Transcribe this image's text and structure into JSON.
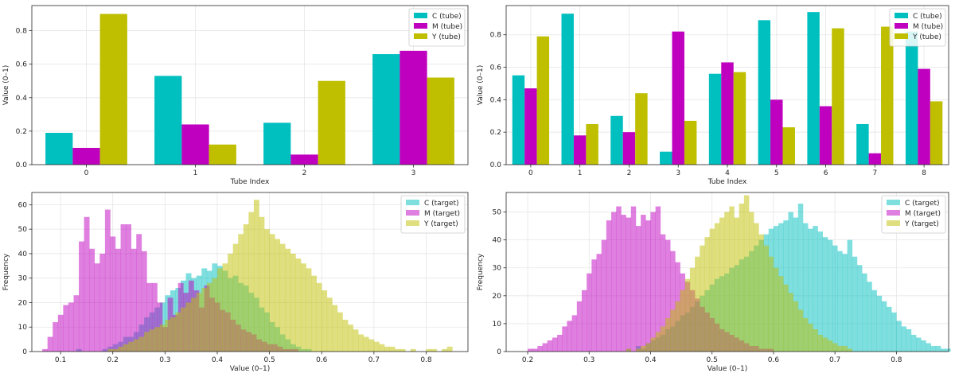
{
  "colors": {
    "C": "#00bfbf",
    "M": "#bf00bf",
    "Y": "#bfbf00",
    "grid": "#e6e6e6",
    "axis": "#262626"
  },
  "chart_data": [
    {
      "type": "bar",
      "title": "",
      "xlabel": "Tube Index",
      "ylabel": "Value (0–1)",
      "categories": [
        "0",
        "1",
        "2",
        "3"
      ],
      "ylim": [
        0,
        0.95
      ],
      "yticks": [
        "0.0",
        "0.2",
        "0.4",
        "0.6",
        "0.8"
      ],
      "grid": true,
      "legend_loc": "top-right",
      "series": [
        {
          "name": "C (tube)",
          "color": "#00bfbf",
          "values": [
            0.19,
            0.53,
            0.25,
            0.66
          ]
        },
        {
          "name": "M (tube)",
          "color": "#bf00bf",
          "values": [
            0.1,
            0.24,
            0.06,
            0.68
          ]
        },
        {
          "name": "Y (tube)",
          "color": "#bfbf00",
          "values": [
            0.9,
            0.12,
            0.5,
            0.52
          ]
        }
      ]
    },
    {
      "type": "bar",
      "title": "",
      "xlabel": "Tube Index",
      "ylabel": "Value (0–1)",
      "categories": [
        "0",
        "1",
        "2",
        "3",
        "4",
        "5",
        "6",
        "7",
        "8"
      ],
      "ylim": [
        0,
        0.98
      ],
      "yticks": [
        "0.0",
        "0.2",
        "0.4",
        "0.6",
        "0.8"
      ],
      "grid": true,
      "legend_loc": "top-right",
      "series": [
        {
          "name": "C (tube)",
          "color": "#00bfbf",
          "values": [
            0.55,
            0.93,
            0.3,
            0.08,
            0.56,
            0.89,
            0.94,
            0.25,
            0.82
          ]
        },
        {
          "name": "M (tube)",
          "color": "#bf00bf",
          "values": [
            0.47,
            0.18,
            0.2,
            0.82,
            0.63,
            0.4,
            0.36,
            0.07,
            0.59
          ]
        },
        {
          "name": "Y (tube)",
          "color": "#bfbf00",
          "values": [
            0.79,
            0.25,
            0.44,
            0.27,
            0.57,
            0.23,
            0.84,
            0.85,
            0.39
          ]
        }
      ]
    },
    {
      "type": "histogram",
      "title": "",
      "xlabel": "Value (0–1)",
      "ylabel": "Frequency",
      "xlim": [
        0.045,
        0.88
      ],
      "ylim": [
        0,
        65
      ],
      "xticks": [
        0.1,
        0.2,
        0.3,
        0.4,
        0.5,
        0.6,
        0.7,
        0.8
      ],
      "yticks": [
        0,
        10,
        20,
        30,
        40,
        50,
        60
      ],
      "grid": true,
      "legend_loc": "top-right",
      "series": [
        {
          "name": "C (target)",
          "color": "#00bfbf",
          "alpha": 0.5,
          "bin_start": 0.13,
          "bin_width": 0.01,
          "counts": [
            1,
            0,
            0,
            0,
            0,
            1,
            2,
            3,
            4,
            6,
            6,
            8,
            11,
            14,
            16,
            18,
            20,
            23,
            25,
            26,
            29,
            32,
            30,
            31,
            34,
            33,
            36,
            35,
            33,
            30,
            31,
            28,
            27,
            24,
            22,
            18,
            16,
            12,
            10,
            7,
            5,
            3,
            2,
            1,
            1
          ]
        },
        {
          "name": "M (target)",
          "color": "#bf00bf",
          "alpha": 0.5,
          "bin_start": 0.065,
          "bin_width": 0.01,
          "counts": [
            1,
            6,
            12,
            15,
            19,
            20,
            23,
            45,
            55,
            42,
            36,
            40,
            58,
            47,
            42,
            52,
            52,
            42,
            48,
            41,
            28,
            28,
            20,
            10,
            22,
            15,
            28,
            24,
            29,
            25,
            18,
            27,
            22,
            20,
            17,
            16,
            13,
            11,
            9,
            8,
            7,
            5,
            4,
            3,
            3,
            2,
            1,
            1,
            1
          ]
        },
        {
          "name": "Y (target)",
          "color": "#bfbf00",
          "alpha": 0.5,
          "bin_start": 0.19,
          "bin_width": 0.01,
          "counts": [
            1,
            1,
            2,
            3,
            4,
            5,
            6,
            8,
            9,
            10,
            11,
            13,
            14,
            16,
            18,
            20,
            22,
            24,
            26,
            28,
            30,
            34,
            36,
            40,
            44,
            48,
            52,
            57,
            62,
            55,
            50,
            48,
            46,
            44,
            42,
            40,
            38,
            36,
            34,
            31,
            28,
            25,
            22,
            19,
            16,
            13,
            11,
            9,
            7,
            6,
            5,
            4,
            3,
            2,
            2,
            1,
            1,
            0,
            1,
            0,
            0,
            1,
            1,
            0,
            1,
            2
          ]
        }
      ]
    },
    {
      "type": "histogram",
      "title": "",
      "xlabel": "Value (0–1)",
      "ylabel": "Frequency",
      "xlim": [
        0.165,
        0.885
      ],
      "ylim": [
        0,
        57
      ],
      "xticks": [
        0.2,
        0.3,
        0.4,
        0.5,
        0.6,
        0.7,
        0.8
      ],
      "yticks": [
        0,
        10,
        20,
        30,
        40,
        50
      ],
      "grid": true,
      "legend_loc": "top-right",
      "series": [
        {
          "name": "C (target)",
          "color": "#00bfbf",
          "alpha": 0.5,
          "bin_start": 0.36,
          "bin_width": 0.008,
          "counts": [
            1,
            0,
            2,
            1,
            3,
            4,
            5,
            6,
            8,
            9,
            11,
            13,
            14,
            16,
            18,
            20,
            22,
            24,
            26,
            27,
            28,
            30,
            31,
            33,
            34,
            36,
            38,
            40,
            42,
            44,
            45,
            46,
            47,
            50,
            48,
            53,
            46,
            44,
            45,
            43,
            41,
            40,
            38,
            36,
            35,
            40,
            34,
            31,
            28,
            25,
            22,
            20,
            18,
            16,
            14,
            11,
            9,
            8,
            6,
            5,
            4,
            3,
            2,
            2,
            1,
            1
          ]
        },
        {
          "name": "M (target)",
          "color": "#bf00bf",
          "alpha": 0.5,
          "bin_start": 0.2,
          "bin_width": 0.008,
          "counts": [
            1,
            1,
            2,
            3,
            4,
            5,
            6,
            9,
            11,
            13,
            18,
            22,
            28,
            33,
            35,
            40,
            47,
            50,
            52,
            49,
            48,
            52,
            45,
            49,
            47,
            50,
            52,
            42,
            40,
            36,
            32,
            28,
            25,
            22,
            19,
            16,
            14,
            12,
            10,
            8,
            7,
            6,
            5,
            4,
            3,
            2,
            2,
            1,
            1,
            1
          ]
        },
        {
          "name": "Y (target)",
          "color": "#bfbf00",
          "alpha": 0.5,
          "bin_start": 0.36,
          "bin_width": 0.008,
          "counts": [
            1,
            0,
            1,
            2,
            3,
            5,
            7,
            9,
            12,
            15,
            18,
            22,
            26,
            30,
            34,
            38,
            41,
            44,
            46,
            48,
            50,
            52,
            48,
            53,
            56,
            50,
            46,
            42,
            38,
            34,
            30,
            27,
            24,
            21,
            18,
            15,
            12,
            10,
            8,
            6,
            5,
            4,
            3,
            2,
            2,
            1
          ]
        }
      ]
    }
  ]
}
